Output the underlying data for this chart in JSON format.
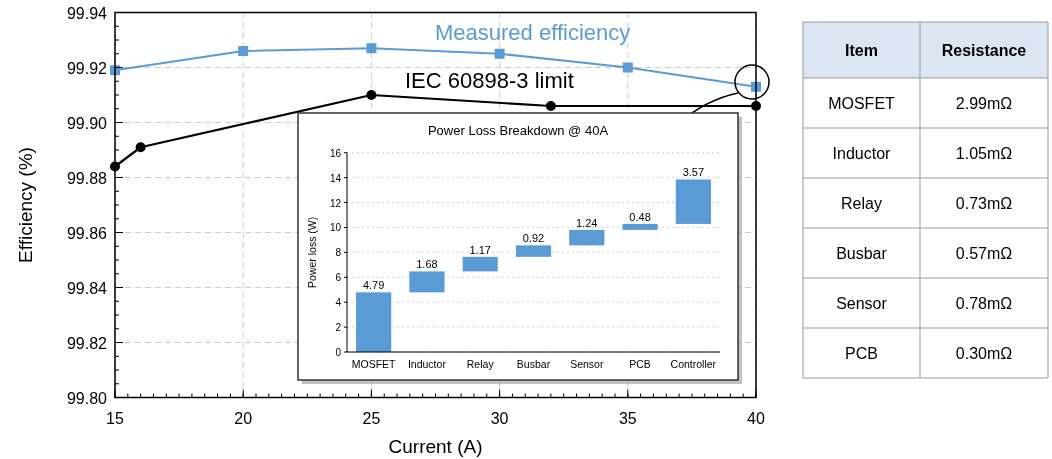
{
  "chart_data": [
    {
      "type": "line",
      "xlabel": "Current (A)",
      "ylabel": "Efficiency (%)",
      "xlim": [
        15,
        40
      ],
      "xticks": [
        15,
        20,
        25,
        30,
        35,
        40
      ],
      "ylim": [
        99.8,
        99.94
      ],
      "yticks": [
        {
          "value": 99.8,
          "label": "99.80"
        },
        {
          "value": 99.82,
          "label": "99.82"
        },
        {
          "value": 99.84,
          "label": "99.84"
        },
        {
          "value": 99.86,
          "label": "99.86"
        },
        {
          "value": 99.88,
          "label": "99.88"
        },
        {
          "value": 99.9,
          "label": "99.90"
        },
        {
          "value": 99.92,
          "label": "99.92"
        },
        {
          "value": 99.94,
          "label": "99.94"
        }
      ],
      "grid": true,
      "series": [
        {
          "name": "Measured efficiency",
          "color": "#5b9bd5",
          "marker": "square",
          "x": [
            15,
            20,
            25,
            30,
            35,
            40
          ],
          "values": [
            99.919,
            99.926,
            99.927,
            99.925,
            99.92,
            99.913
          ]
        },
        {
          "name": "IEC 60898-3 limit",
          "color": "#000000",
          "marker": "circle",
          "x": [
            15,
            16,
            25,
            32,
            40
          ],
          "values": [
            99.884,
            99.891,
            99.91,
            99.906,
            99.906
          ]
        }
      ]
    },
    {
      "type": "bar",
      "title": "Power Loss Breakdown @ 40A",
      "ylabel": "Power loss  (W)",
      "categories": [
        "MOSFET",
        "Inductor",
        "Relay",
        "Busbar",
        "Sensor",
        "PCB",
        "Controller"
      ],
      "values": [
        4.79,
        1.68,
        1.17,
        0.92,
        1.24,
        0.48,
        3.57
      ],
      "base": [
        0,
        4.79,
        6.47,
        7.64,
        8.56,
        9.8,
        10.28
      ],
      "color": "#5b9bd5",
      "ylim": [
        0,
        16
      ],
      "yticks": [
        0,
        2,
        4,
        6,
        8,
        10,
        12,
        14,
        16
      ],
      "grid": "y",
      "data_labels": true
    },
    {
      "type": "other",
      "xlabel": "Item",
      "ylabel": "Resistance",
      "categories": [
        "MOSFET",
        "Inductor",
        "Relay",
        "Busbar",
        "Sensor",
        "PCB"
      ],
      "value_labels": [
        "2.99mΩ",
        "1.05mΩ",
        "0.73mΩ",
        "0.57mΩ",
        "0.78mΩ",
        "0.30mΩ"
      ]
    }
  ]
}
